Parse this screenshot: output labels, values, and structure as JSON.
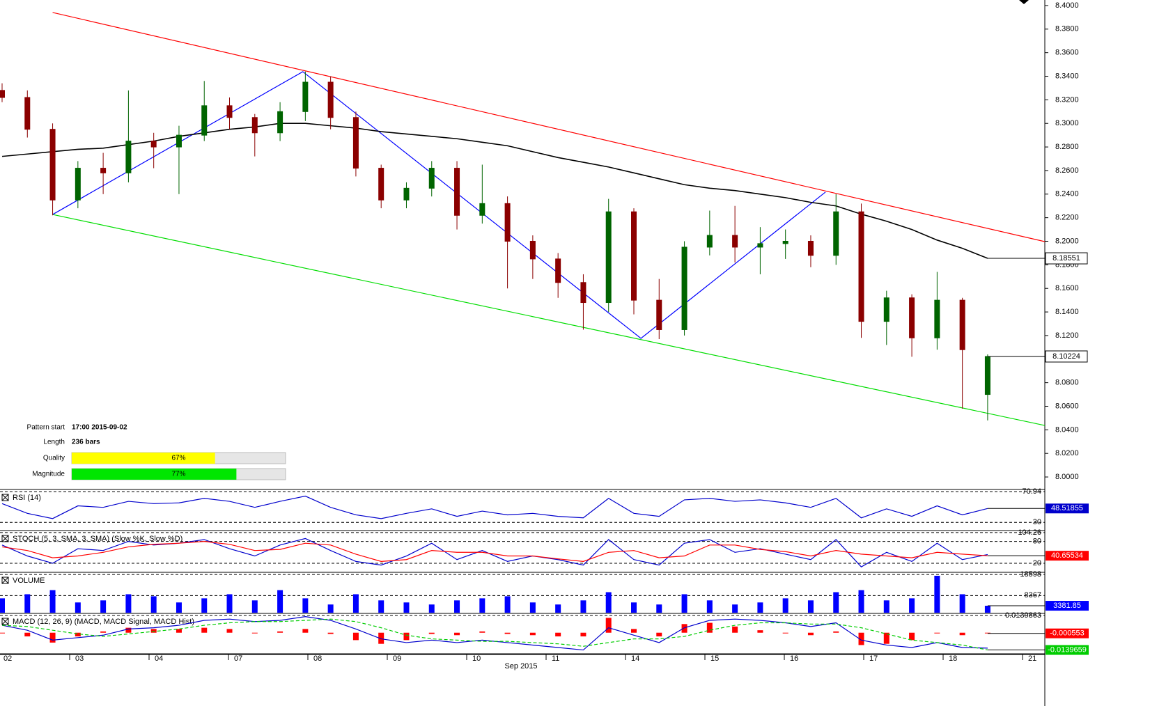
{
  "chart_data": {
    "type": "candlestick",
    "up_color": "#006400",
    "down_color": "#8b0000",
    "ylim": [
      7.9894,
      8.4047
    ],
    "yticks": [
      {
        "value": 8.4,
        "label": "8.4000"
      },
      {
        "value": 8.38,
        "label": "8.3800"
      },
      {
        "value": 8.36,
        "label": "8.3600"
      },
      {
        "value": 8.34,
        "label": "8.3400"
      },
      {
        "value": 8.32,
        "label": "8.3200"
      },
      {
        "value": 8.3,
        "label": "8.3000"
      },
      {
        "value": 8.28,
        "label": "8.2800"
      },
      {
        "value": 8.26,
        "label": "8.2600"
      },
      {
        "value": 8.24,
        "label": "8.2400"
      },
      {
        "value": 8.22,
        "label": "8.2200"
      },
      {
        "value": 8.2,
        "label": "8.2000"
      },
      {
        "value": 8.18,
        "label": "8.1800"
      },
      {
        "value": 8.16,
        "label": "8.1600"
      },
      {
        "value": 8.14,
        "label": "8.1400"
      },
      {
        "value": 8.12,
        "label": "8.1200"
      },
      {
        "value": 8.1,
        "label": "8.1000"
      },
      {
        "value": 8.08,
        "label": "8.0800"
      },
      {
        "value": 8.06,
        "label": "8.0600"
      },
      {
        "value": 8.04,
        "label": "8.0400"
      },
      {
        "value": 8.02,
        "label": "8.0200"
      },
      {
        "value": 8.0,
        "label": "8.0000"
      }
    ],
    "x_labels": [
      "02",
      "03",
      "04",
      "07",
      "08",
      "09",
      "10",
      "11",
      "14",
      "15",
      "16",
      "17",
      "18",
      "21"
    ],
    "x_caption": "Sep 2015",
    "open": [
      8.328,
      8.322,
      8.295,
      8.235,
      8.262,
      8.258,
      8.285,
      8.28,
      8.29,
      8.315,
      8.305,
      8.292,
      8.31,
      8.335,
      8.305,
      8.262,
      8.235,
      8.245,
      8.262,
      8.222,
      8.232,
      8.2,
      8.185,
      8.165,
      8.148,
      8.225,
      8.15,
      8.125,
      8.195,
      8.205,
      8.195,
      8.198,
      8.2,
      8.188,
      8.225,
      8.132,
      8.152,
      8.118,
      8.15,
      8.07
    ],
    "high": [
      8.334,
      8.328,
      8.3,
      8.268,
      8.275,
      8.328,
      8.292,
      8.298,
      8.336,
      8.322,
      8.308,
      8.318,
      8.344,
      8.34,
      8.31,
      8.265,
      8.25,
      8.268,
      8.268,
      8.265,
      8.238,
      8.205,
      8.19,
      8.172,
      8.236,
      8.228,
      8.168,
      8.2,
      8.226,
      8.23,
      8.212,
      8.21,
      8.205,
      8.24,
      8.232,
      8.158,
      8.155,
      8.174,
      8.152,
      8.104
    ],
    "low": [
      8.318,
      8.288,
      8.222,
      8.228,
      8.24,
      8.25,
      8.262,
      8.24,
      8.285,
      8.295,
      8.272,
      8.285,
      8.302,
      8.295,
      8.255,
      8.228,
      8.228,
      8.238,
      8.21,
      8.215,
      8.16,
      8.168,
      8.152,
      8.125,
      8.14,
      8.138,
      8.117,
      8.12,
      8.188,
      8.182,
      8.172,
      8.185,
      8.178,
      8.18,
      8.118,
      8.112,
      8.102,
      8.108,
      8.058,
      8.048
    ],
    "close": [
      8.322,
      8.295,
      8.235,
      8.262,
      8.258,
      8.285,
      8.28,
      8.29,
      8.315,
      8.305,
      8.292,
      8.31,
      8.335,
      8.305,
      8.262,
      8.235,
      8.245,
      8.262,
      8.222,
      8.232,
      8.2,
      8.185,
      8.165,
      8.148,
      8.225,
      8.15,
      8.125,
      8.195,
      8.205,
      8.195,
      8.198,
      8.2,
      8.188,
      8.225,
      8.132,
      8.152,
      8.118,
      8.15,
      8.108,
      8.10224
    ],
    "moving_average": {
      "color": "#000000",
      "values": [
        8.272,
        8.274,
        8.276,
        8.278,
        8.279,
        8.282,
        8.285,
        8.289,
        8.292,
        8.295,
        8.297,
        8.3,
        8.3,
        8.298,
        8.296,
        8.293,
        8.291,
        8.289,
        8.287,
        8.284,
        8.281,
        8.276,
        8.271,
        8.267,
        8.263,
        8.258,
        8.253,
        8.248,
        8.245,
        8.243,
        8.24,
        8.237,
        8.233,
        8.23,
        8.223,
        8.217,
        8.21,
        8.201,
        8.194,
        8.18551
      ]
    },
    "trendlines": [
      {
        "color": "#ff0000",
        "x": [
          2,
          41.26
        ],
        "y": [
          8.3941,
          8.1997
        ]
      },
      {
        "color": "#00dd00",
        "x": [
          2,
          41.26
        ],
        "y": [
          8.2227,
          8.0437
        ]
      },
      {
        "color": "#0000ff",
        "x": [
          2,
          11.9,
          25.28,
          32.58
        ],
        "y": [
          8.2227,
          8.3439,
          8.1176,
          8.2417
        ]
      }
    ],
    "pattern": {
      "xlim": [
        0,
        100
      ],
      "rows": [
        {
          "label": "Pattern start",
          "text": "17:00 2015-09-02"
        },
        {
          "label": "Length",
          "text": "236 bars"
        },
        {
          "label": "Quality",
          "value": 67,
          "value_label": "67%",
          "color": "#ffff00"
        },
        {
          "label": "Magnitude",
          "value": 77,
          "value_label": "77%",
          "color": "#00e600"
        }
      ]
    },
    "panes": [
      {
        "type": "line",
        "title": "RSI (14)",
        "ylim": [
          20,
          72
        ],
        "yticks": [
          70.94,
          30
        ],
        "series": [
          {
            "color": "#0000cc",
            "boxed": true,
            "values": [
              55,
              42,
              35,
              52,
              50,
              58,
              55,
              56,
              62,
              58,
              50,
              58,
              65,
              50,
              40,
              35,
              42,
              48,
              38,
              45,
              40,
              42,
              38,
              36,
              62,
              42,
              38,
              60,
              62,
              58,
              60,
              56,
              50,
              62,
              36,
              48,
              38,
              52,
              40,
              48.51855
            ]
          }
        ]
      },
      {
        "type": "line",
        "title": "STOCH (5, 3, SMA, 3, SMA) (Slow %K, Slow %D)",
        "ylim": [
          -3,
          106
        ],
        "yticks": [
          104.26,
          80,
          20
        ],
        "series": [
          {
            "color": "#0000cc",
            "values": [
              70,
              40,
              20,
              60,
              55,
              80,
              70,
              75,
              85,
              60,
              40,
              70,
              88,
              55,
              25,
              15,
              40,
              75,
              30,
              55,
              25,
              40,
              30,
              15,
              85,
              30,
              15,
              75,
              85,
              50,
              60,
              45,
              30,
              85,
              10,
              50,
              25,
              75,
              30,
              44
            ]
          },
          {
            "color": "#ff0000",
            "boxed": true,
            "values": [
              65,
              55,
              35,
              40,
              50,
              65,
              72,
              75,
              80,
              72,
              55,
              58,
              75,
              70,
              45,
              25,
              30,
              55,
              50,
              50,
              40,
              40,
              32,
              25,
              50,
              55,
              35,
              40,
              70,
              70,
              58,
              52,
              40,
              55,
              45,
              40,
              35,
              50,
              45,
              40.65534
            ]
          }
        ]
      },
      {
        "type": "bar",
        "title": "VOLUME",
        "ylim": [
          0,
          19000
        ],
        "yticks": [
          18598,
          8367
        ],
        "series": [
          {
            "color": "#0000ff",
            "boxed": true,
            "values": [
              7000,
              9000,
              11000,
              5000,
              6000,
              9000,
              8000,
              5000,
              7000,
              9000,
              6000,
              11000,
              7000,
              4000,
              9000,
              6000,
              5000,
              4000,
              6000,
              7000,
              8000,
              5000,
              4000,
              6000,
              10000,
              5000,
              4000,
              9000,
              6000,
              4000,
              5000,
              7000,
              6000,
              10000,
              11000,
              6000,
              7000,
              18000,
              9000,
              3381.85
            ]
          }
        ]
      },
      {
        "type": "line",
        "title": "MACD (12, 26, 9) (MACD, MACD Signal, MACD Hist)",
        "ylim": [
          -0.0165,
          0.0145
        ],
        "yticks": [
          0.0139863
        ],
        "series": [
          {
            "type": "bar",
            "color": "#ff0000",
            "boxed": true,
            "values": [
              0,
              -0.003,
              -0.008,
              -0.003,
              0.001,
              0.004,
              0.003,
              0.003,
              0.004,
              0.003,
              0,
              0.001,
              0.003,
              -0.001,
              -0.006,
              -0.009,
              -0.006,
              -0.001,
              -0.002,
              0.001,
              -0.001,
              -0.002,
              -0.003,
              -0.003,
              0.012,
              0.003,
              -0.003,
              0.007,
              0.008,
              0.005,
              0.002,
              0,
              -0.002,
              0.001,
              -0.01,
              -0.009,
              -0.006,
              0,
              -0.002,
              -0.000553
            ]
          },
          {
            "color": "#0000cc",
            "values": [
              0.006,
              0.002,
              -0.006,
              -0.004,
              -0.002,
              0.003,
              0.004,
              0.006,
              0.01,
              0.011,
              0.009,
              0.01,
              0.013,
              0.01,
              0.003,
              -0.005,
              -0.008,
              -0.006,
              -0.008,
              -0.006,
              -0.008,
              -0.01,
              -0.012,
              -0.014,
              0.004,
              -0.002,
              -0.008,
              0.004,
              0.01,
              0.011,
              0.01,
              0.008,
              0.005,
              0.008,
              -0.006,
              -0.01,
              -0.012,
              -0.008,
              -0.012,
              -0.0125
            ]
          },
          {
            "color": "#00cc00",
            "dashed": true,
            "boxed": true,
            "values": [
              0.006,
              0.005,
              0.002,
              -0.001,
              -0.003,
              -0.001,
              0.001,
              0.003,
              0.006,
              0.008,
              0.009,
              0.009,
              0.01,
              0.011,
              0.009,
              0.004,
              -0.002,
              -0.005,
              -0.006,
              -0.007,
              -0.007,
              -0.008,
              -0.009,
              -0.011,
              -0.008,
              -0.005,
              -0.005,
              -0.003,
              0.002,
              0.006,
              0.008,
              0.008,
              0.007,
              0.007,
              0.004,
              -0.001,
              -0.006,
              -0.008,
              -0.01,
              -0.0139659
            ]
          }
        ]
      }
    ]
  }
}
